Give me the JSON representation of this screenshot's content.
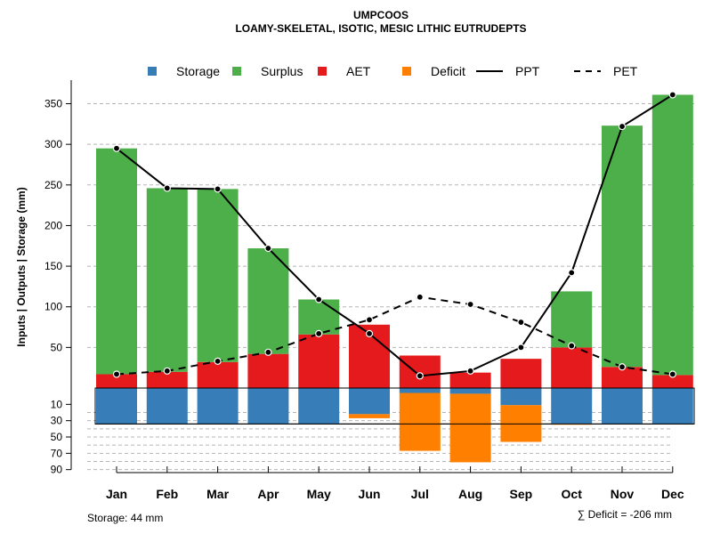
{
  "chart_data": {
    "type": "bar",
    "title": "UMPCOOS",
    "subtitle": "LOAMY-SKELETAL, ISOTIC, MESIC LITHIC EUTRUDEPTS",
    "ylabel": "Inputs | Outputs | Storage    (mm)",
    "categories": [
      "Jan",
      "Feb",
      "Mar",
      "Apr",
      "May",
      "Jun",
      "Jul",
      "Aug",
      "Sep",
      "Oct",
      "Nov",
      "Dec"
    ],
    "upper_ticks": [
      50,
      100,
      150,
      200,
      250,
      300,
      350
    ],
    "lower_ticks": [
      10,
      30,
      50,
      70,
      90
    ],
    "ylim_upper": [
      0,
      370
    ],
    "ylim_lower": [
      0,
      90
    ],
    "grid": true,
    "legend": {
      "position": "top",
      "items": [
        {
          "label": "Storage",
          "kind": "square",
          "color": "#377EB8"
        },
        {
          "label": "Surplus",
          "kind": "square",
          "color": "#4DAF4A"
        },
        {
          "label": "AET",
          "kind": "square",
          "color": "#E41A1C"
        },
        {
          "label": "Deficit",
          "kind": "square",
          "color": "#FF7F00"
        },
        {
          "label": "PPT",
          "kind": "solid-line",
          "color": "#000000"
        },
        {
          "label": "PET",
          "kind": "dashed-line",
          "color": "#000000"
        }
      ]
    },
    "series": [
      {
        "name": "AET",
        "color": "#E41A1C",
        "values": [
          17,
          20,
          32,
          42,
          66,
          78,
          40,
          19,
          36,
          50,
          26,
          16
        ]
      },
      {
        "name": "Surplus",
        "color": "#4DAF4A",
        "values": [
          278,
          226,
          213,
          130,
          43,
          0,
          0,
          0,
          0,
          69,
          297,
          345
        ]
      },
      {
        "name": "Storage",
        "color": "#377EB8",
        "values": [
          44,
          44,
          44,
          44,
          44,
          32,
          6,
          7,
          21,
          44,
          44,
          44
        ]
      },
      {
        "name": "Deficit",
        "color": "#FF7F00",
        "values": [
          0,
          0,
          0,
          0,
          0,
          5,
          71,
          84,
          45,
          1,
          0,
          0
        ]
      },
      {
        "name": "PPT",
        "color": "#000000",
        "line": "solid",
        "values": [
          295,
          246,
          245,
          172,
          109,
          67,
          15,
          21,
          50,
          142,
          322,
          361
        ]
      },
      {
        "name": "PET",
        "color": "#000000",
        "line": "dashed",
        "values": [
          17,
          21,
          33,
          44,
          67,
          84,
          112,
          103,
          81,
          52,
          26,
          17
        ]
      }
    ],
    "storage_capacity": 44,
    "footer_left": "Storage: 44 mm",
    "footer_right": "∑ Deficit = -206 mm"
  }
}
